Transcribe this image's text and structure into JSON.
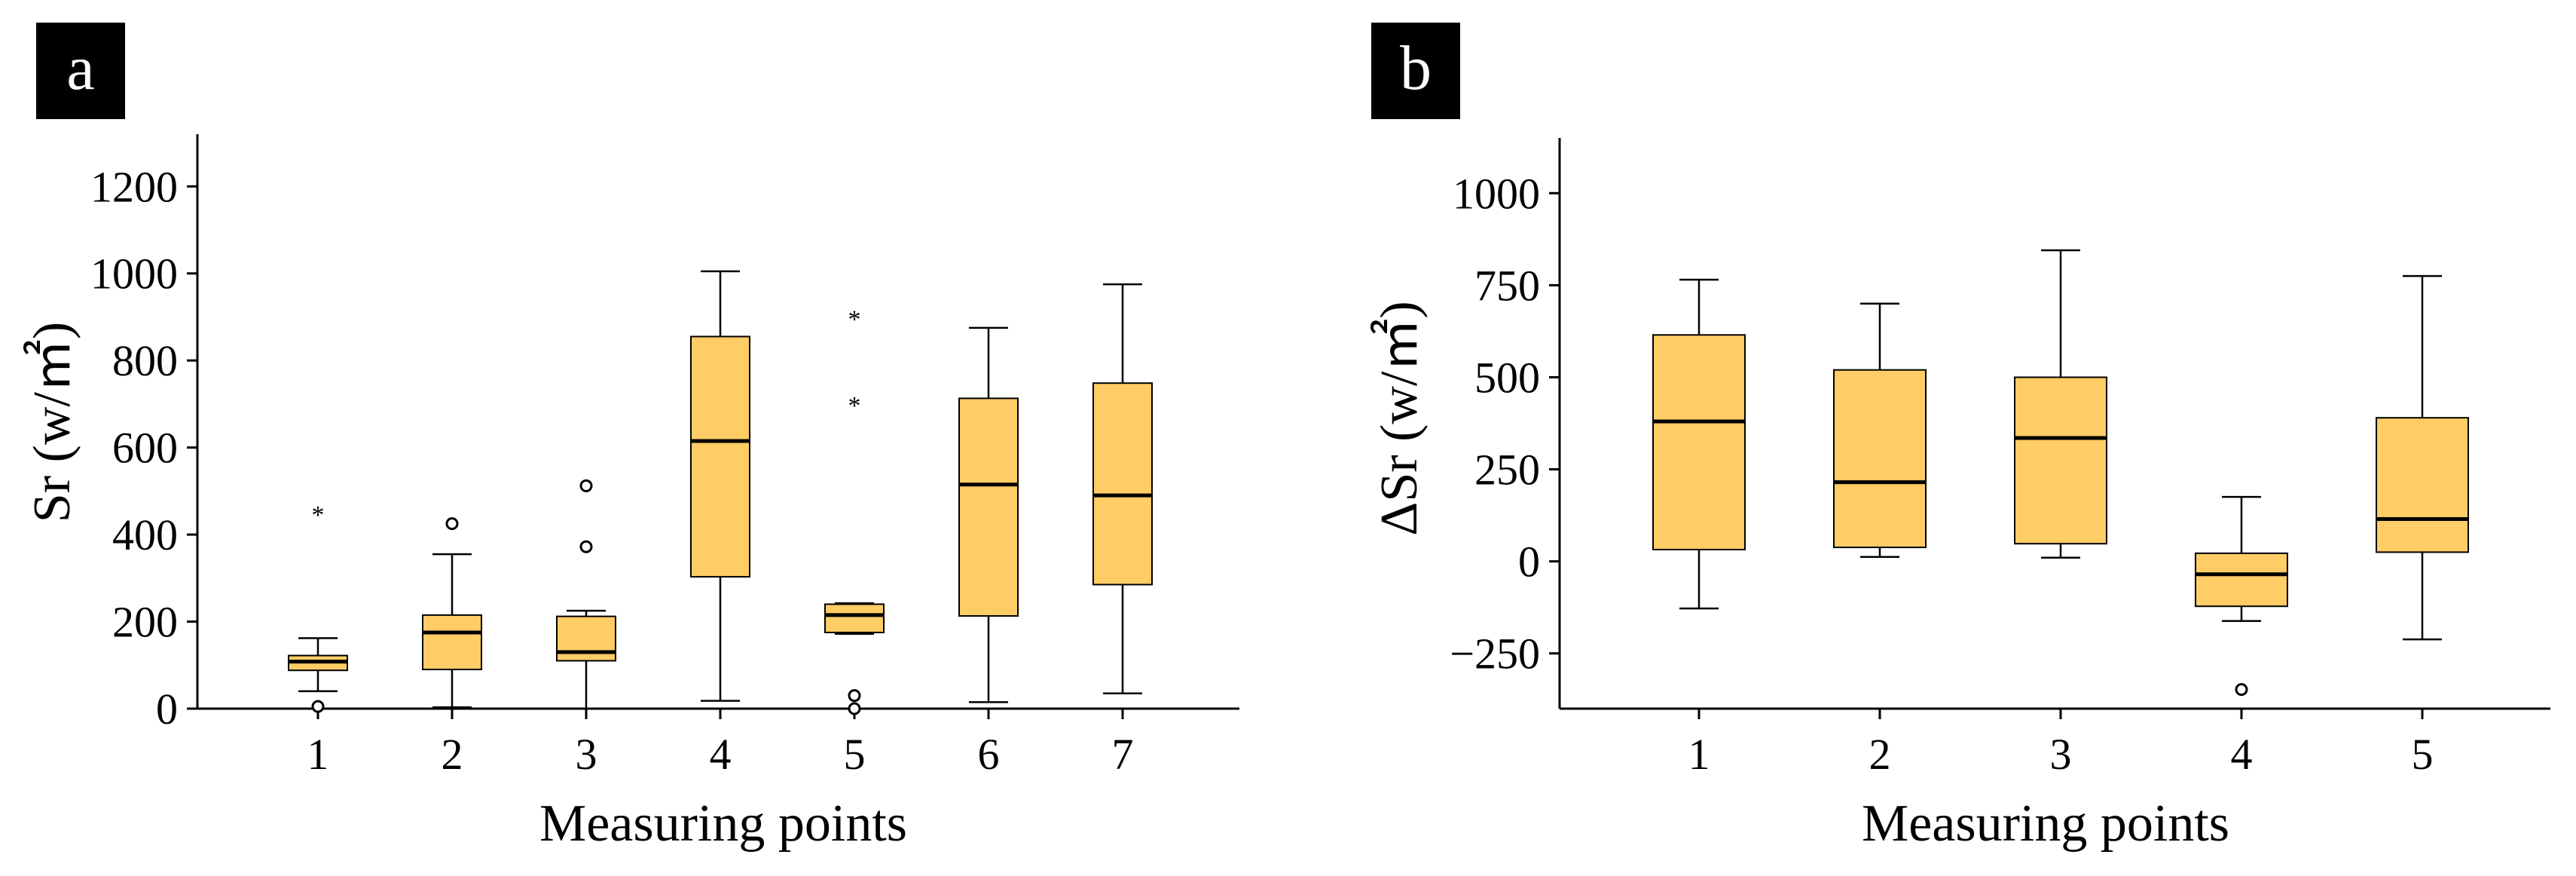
{
  "colors": {
    "box_fill": "#FFCC66",
    "stroke": "#000000",
    "panel_label_bg": "#000000",
    "panel_label_text": "#FFFFFF"
  },
  "chart_data": [
    {
      "type": "box",
      "panel_label": "a",
      "xlabel": "Measuring points",
      "ylabel": "Sr (w/㎡)",
      "ylim": [
        0,
        1320
      ],
      "yticks": [
        0,
        200,
        400,
        600,
        800,
        1000,
        1200
      ],
      "categories": [
        "1",
        "2",
        "3",
        "4",
        "5",
        "6",
        "7"
      ],
      "boxes": [
        {
          "category": "1",
          "min": 40,
          "q1": 88,
          "median": 108,
          "q3": 122,
          "max": 162,
          "outliers": [
            {
              "value": 5,
              "marker": "circle"
            },
            {
              "value": 450,
              "marker": "star"
            }
          ]
        },
        {
          "category": "2",
          "min": 3,
          "q1": 90,
          "median": 175,
          "q3": 215,
          "max": 355,
          "outliers": [
            {
              "value": 425,
              "marker": "circle"
            }
          ]
        },
        {
          "category": "3",
          "min": 0,
          "q1": 110,
          "median": 130,
          "q3": 212,
          "max": 225,
          "outliers": [
            {
              "value": 372,
              "marker": "circle"
            },
            {
              "value": 512,
              "marker": "circle"
            }
          ]
        },
        {
          "category": "4",
          "min": 18,
          "q1": 303,
          "median": 615,
          "q3": 855,
          "max": 1005,
          "outliers": []
        },
        {
          "category": "5",
          "min": 172,
          "q1": 175,
          "median": 215,
          "q3": 240,
          "max": 242,
          "outliers": [
            {
              "value": 0,
              "marker": "circle"
            },
            {
              "value": 30,
              "marker": "circle"
            },
            {
              "value": 702,
              "marker": "star"
            },
            {
              "value": 900,
              "marker": "star"
            }
          ]
        },
        {
          "category": "6",
          "min": 15,
          "q1": 213,
          "median": 515,
          "q3": 713,
          "max": 875,
          "outliers": []
        },
        {
          "category": "7",
          "min": 35,
          "q1": 285,
          "median": 490,
          "q3": 748,
          "max": 975,
          "outliers": []
        }
      ]
    },
    {
      "type": "box",
      "panel_label": "b",
      "xlabel": "Measuring points",
      "ylabel": "ΔSr (w/㎡)",
      "ylim": [
        -400,
        1150
      ],
      "yticks": [
        -250,
        0,
        250,
        500,
        750,
        1000
      ],
      "categories": [
        "1",
        "2",
        "3",
        "4",
        "5"
      ],
      "boxes": [
        {
          "category": "1",
          "min": -128,
          "q1": 32,
          "median": 380,
          "q3": 615,
          "max": 765,
          "outliers": []
        },
        {
          "category": "2",
          "min": 12,
          "q1": 38,
          "median": 215,
          "q3": 520,
          "max": 700,
          "outliers": []
        },
        {
          "category": "3",
          "min": 10,
          "q1": 48,
          "median": 335,
          "q3": 500,
          "max": 845,
          "outliers": []
        },
        {
          "category": "4",
          "min": -162,
          "q1": -122,
          "median": -35,
          "q3": 22,
          "max": 175,
          "outliers": [
            {
              "value": -348,
              "marker": "circle"
            }
          ]
        },
        {
          "category": "5",
          "min": -212,
          "q1": 25,
          "median": 115,
          "q3": 390,
          "max": 775,
          "outliers": []
        }
      ]
    }
  ]
}
